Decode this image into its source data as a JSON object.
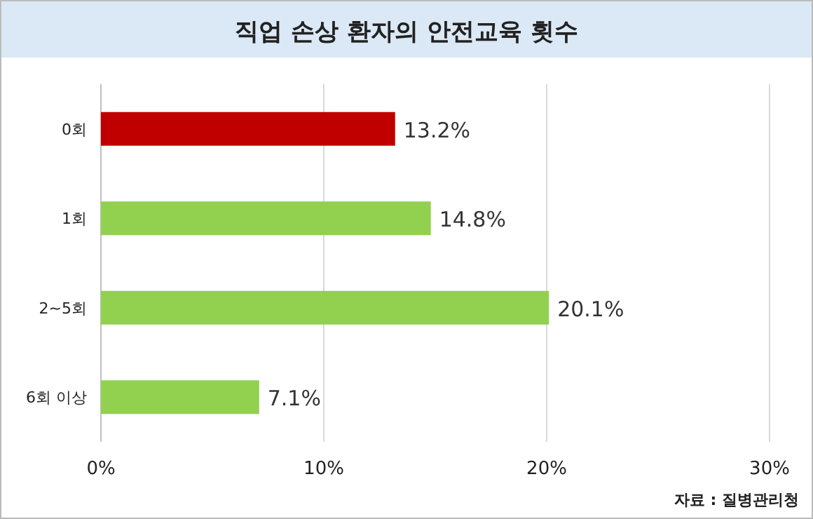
{
  "chart_data": {
    "type": "bar",
    "orientation": "horizontal",
    "title": "직업 손상 환자의 안전교육 횟수",
    "categories": [
      "0회",
      "1회",
      "2~5회",
      "6회 이상"
    ],
    "values": [
      13.2,
      14.8,
      20.1,
      7.1
    ],
    "colors": [
      "#c00000",
      "#92d050",
      "#92d050",
      "#92d050"
    ],
    "value_labels": [
      "13.2%",
      "14.8%",
      "20.1%",
      "7.1%"
    ],
    "xlim": [
      0,
      30
    ],
    "xticks": [
      {
        "value": 0,
        "label": "0%"
      },
      {
        "value": 10,
        "label": "10%"
      },
      {
        "value": 20,
        "label": "20%"
      },
      {
        "value": 30,
        "label": "30%"
      }
    ],
    "grid": "x",
    "annotations": [
      "자료 : 질병관리청"
    ]
  }
}
